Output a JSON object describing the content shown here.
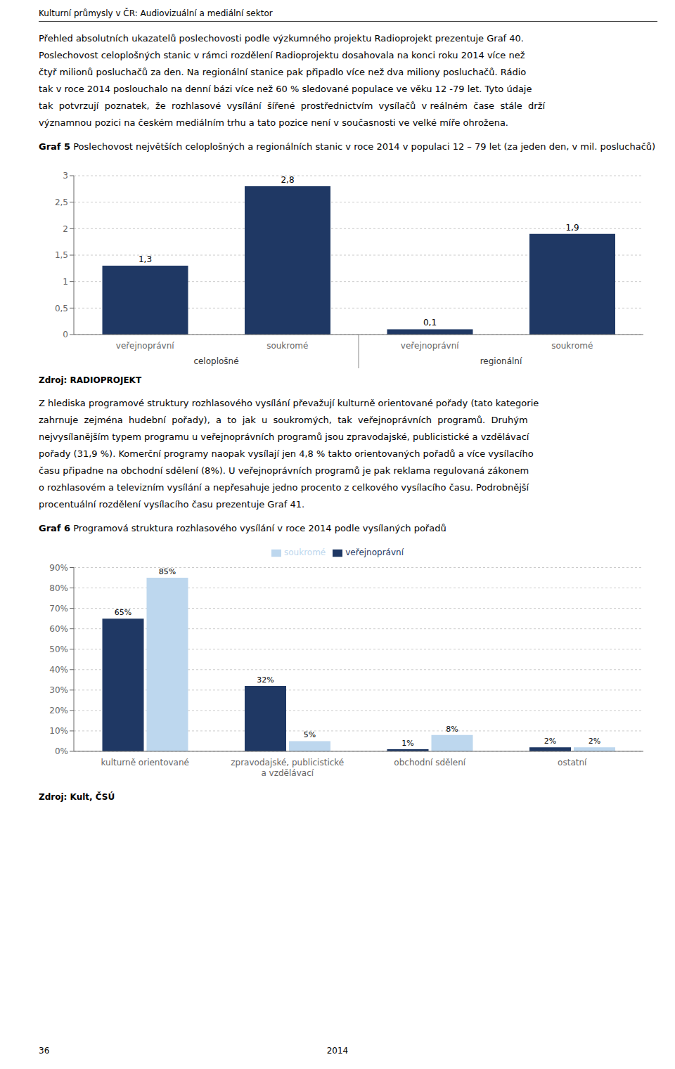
{
  "title": "Kulturní průmysly v ČR: Audiovizuální a mediální sektor",
  "annotations": {
    "footer_left": "36",
    "footer_center": "2014"
  },
  "chart_data": [
    {
      "type": "bar",
      "annotations": {
        "text_before": [
          "Přehled absolutních ukazatelů poslechovosti podle výzkumného projektu Radioprojekt prezentuje Graf 40.",
          "Poslechovost celoplošných stanic v rámci rozdělení Radioprojektu dosahovala na konci roku 2014 více než",
          "čtyř milionů posluchačů za den. Na regionální stanice pak připadlo více než dva miliony posluchačů. Rádio",
          "tak v roce 2014 poslouchalo na denní bázi více než 60 % sledované populace ve věku 12 -79 let. Tyto údaje",
          "tak  potvrzují  poznatek,  že  rozhlasové  vysílání  šířené  prostřednictvím  vysílačů  v reálném  čase  stále  drží",
          "významnou pozici na českém mediálním trhu a tato pozice není v současnosti ve velké míře ohrožena."
        ],
        "source": "Zdroj: RADIOPROJEKT"
      },
      "title": "Graf 5 Poslechovost největších celoplošných a regionálních stanic v roce 2014 v populaci 12 – 79 let (za jeden den, v mil. posluchačů)",
      "categories": [
        "veřejnoprávní",
        "soukromé",
        "veřejnoprávní",
        "soukromé"
      ],
      "groups": [
        {
          "name": "celoplošné",
          "size": 2
        },
        {
          "name": "regionální",
          "size": 2
        }
      ],
      "values": [
        1.3,
        2.8,
        0.1,
        1.9
      ],
      "value_labels": [
        "1,3",
        "2,8",
        "0,1",
        "1,9"
      ],
      "data_labels": true,
      "color": "#1f3864",
      "ylim": [
        0,
        3
      ],
      "yticks": [
        0,
        {
          "value": 0.5,
          "label": "0,5"
        },
        1,
        {
          "value": 1.5,
          "label": "1,5"
        },
        2,
        {
          "value": 2.5,
          "label": "2,5"
        },
        3
      ],
      "grid": true
    },
    {
      "type": "bar",
      "annotations": {
        "text_before": [
          "Z hlediska programové struktury rozhlasového vysílání převažují kulturně orientované pořady (tato kategorie",
          "zahrnuje  zejména  hudební  pořady),  a  to  jak  u  soukromých,  tak  veřejnoprávních  programů.  Druhým",
          "nejvysílanějším typem programu u veřejnoprávních programů jsou zpravodajské, publicistické a vzdělávací",
          "pořady (31,9 %). Komerční programy naopak vysílají jen 4,8 % takto orientovaných pořadů a více vysílacího",
          "času připadne na obchodní sdělení (8%). U veřejnoprávních programů je pak reklama regulovaná zákonem",
          "o rozhlasovém a televizním vysílání a nepřesahuje jedno procento z celkového vysílacího času. Podrobnější",
          "procentuální rozdělení vysílacího času prezentuje Graf 41."
        ],
        "source": "Zdroj: Kult, ČSÚ"
      },
      "title": "Graf 6 Programová struktura rozhlasového vysílání v roce 2014 podle vysílaných pořadů",
      "categories": [
        "kulturně orientované",
        "zpravodajské, publicistické\na vzdělávací",
        "obchodní sdělení",
        "ostatní"
      ],
      "series": [
        {
          "name": "veřejnoprávní",
          "color": "#1f3864",
          "values": [
            65,
            32,
            1,
            2
          ],
          "value_labels": [
            "65%",
            "32%",
            "1%",
            "2%"
          ]
        },
        {
          "name": "soukromé",
          "color": "#bdd7ee",
          "values": [
            85,
            5,
            8,
            2
          ],
          "value_labels": [
            "85%",
            "5%",
            "8%",
            "2%"
          ]
        }
      ],
      "data_labels": true,
      "legend": "top",
      "ylim": [
        0,
        90
      ],
      "yticks": [
        {
          "value": 0,
          "label": "0%"
        },
        {
          "value": 10,
          "label": "10%"
        },
        {
          "value": 20,
          "label": "20%"
        },
        {
          "value": 30,
          "label": "30%"
        },
        {
          "value": 40,
          "label": "40%"
        },
        {
          "value": 50,
          "label": "50%"
        },
        {
          "value": 60,
          "label": "60%"
        },
        {
          "value": 70,
          "label": "70%"
        },
        {
          "value": 80,
          "label": "80%"
        },
        {
          "value": 90,
          "label": "90%"
        }
      ],
      "grid": true
    }
  ]
}
